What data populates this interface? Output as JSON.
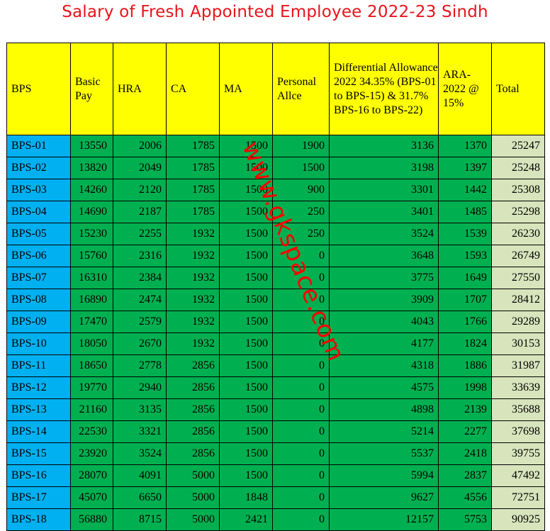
{
  "title": "Salary of Fresh Appointed Employee 2022-23 Sindh",
  "watermark": "www.gkspace.com",
  "headers": [
    "BPS",
    "Basic Pay",
    "HRA",
    "CA",
    "MA",
    "Personal Allce",
    "Differential Allowance 2022 34.35% (BPS-01 to BPS-15) & 31.7% BPS-16 to BPS-22)",
    "ARA-2022 @ 15%",
    "Total"
  ],
  "rows": [
    [
      "BPS-01",
      "13550",
      "2006",
      "1785",
      "1500",
      "1900",
      "3136",
      "1370",
      "25247"
    ],
    [
      "BPS-02",
      "13820",
      "2049",
      "1785",
      "1500",
      "1500",
      "3198",
      "1397",
      "25248"
    ],
    [
      "BPS-03",
      "14260",
      "2120",
      "1785",
      "1500",
      "900",
      "3301",
      "1442",
      "25308"
    ],
    [
      "BPS-04",
      "14690",
      "2187",
      "1785",
      "1500",
      "250",
      "3401",
      "1485",
      "25298"
    ],
    [
      "BPS-05",
      "15230",
      "2255",
      "1932",
      "1500",
      "250",
      "3524",
      "1539",
      "26230"
    ],
    [
      "BPS-06",
      "15760",
      "2316",
      "1932",
      "1500",
      "0",
      "3648",
      "1593",
      "26749"
    ],
    [
      "BPS-07",
      "16310",
      "2384",
      "1932",
      "1500",
      "0",
      "3775",
      "1649",
      "27550"
    ],
    [
      "BPS-08",
      "16890",
      "2474",
      "1932",
      "1500",
      "0",
      "3909",
      "1707",
      "28412"
    ],
    [
      "BPS-09",
      "17470",
      "2579",
      "1932",
      "1500",
      "0",
      "4043",
      "1766",
      "29289"
    ],
    [
      "BPS-10",
      "18050",
      "2670",
      "1932",
      "1500",
      "0",
      "4177",
      "1824",
      "30153"
    ],
    [
      "BPS-11",
      "18650",
      "2778",
      "2856",
      "1500",
      "0",
      "4318",
      "1886",
      "31987"
    ],
    [
      "BPS-12",
      "19770",
      "2940",
      "2856",
      "1500",
      "0",
      "4575",
      "1998",
      "33639"
    ],
    [
      "BPS-13",
      "21160",
      "3135",
      "2856",
      "1500",
      "0",
      "4898",
      "2139",
      "35688"
    ],
    [
      "BPS-14",
      "22530",
      "3321",
      "2856",
      "1500",
      "0",
      "5214",
      "2277",
      "37698"
    ],
    [
      "BPS-15",
      "23920",
      "3524",
      "2856",
      "1500",
      "0",
      "5537",
      "2418",
      "39755"
    ],
    [
      "BPS-16",
      "28070",
      "4091",
      "5000",
      "1500",
      "0",
      "5994",
      "2837",
      "47492"
    ],
    [
      "BPS-17",
      "45070",
      "6650",
      "5000",
      "1848",
      "0",
      "9627",
      "4556",
      "72751"
    ],
    [
      "BPS-18",
      "56880",
      "8715",
      "5000",
      "2421",
      "0",
      "12157",
      "5753",
      "90925"
    ]
  ]
}
